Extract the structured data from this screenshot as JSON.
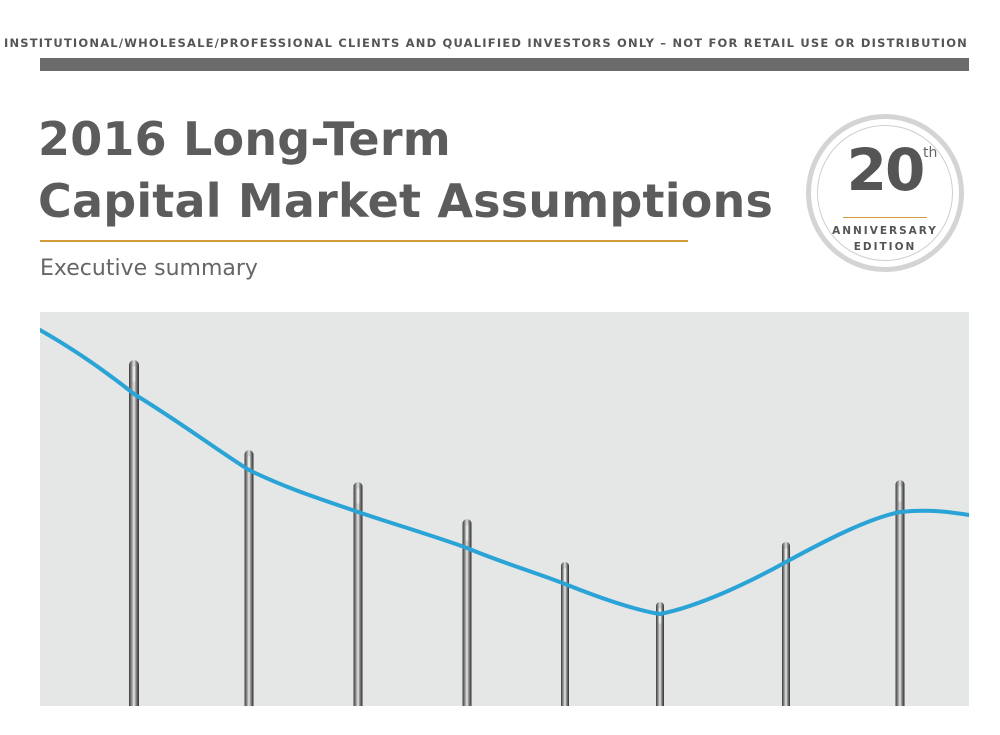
{
  "header": {
    "disclaimer": "FOR INSTITUTIONAL/WHOLESALE/PROFESSIONAL CLIENTS AND QUALIFIED INVESTORS ONLY – NOT FOR RETAIL USE OR DISTRIBUTION"
  },
  "title": {
    "line1": "2016 Long-Term",
    "line2": "Capital Market Assumptions",
    "subtitle": "Executive summary"
  },
  "badge": {
    "number": "20",
    "superscript": "th",
    "line1": "ANNIVERSARY",
    "line2": "EDITION"
  },
  "colors": {
    "accent_gold": "#d59a3c",
    "thread_blue": "#2aa3d6",
    "text_gray": "#5c5c5c",
    "rule_gray": "#6b6b6b"
  }
}
